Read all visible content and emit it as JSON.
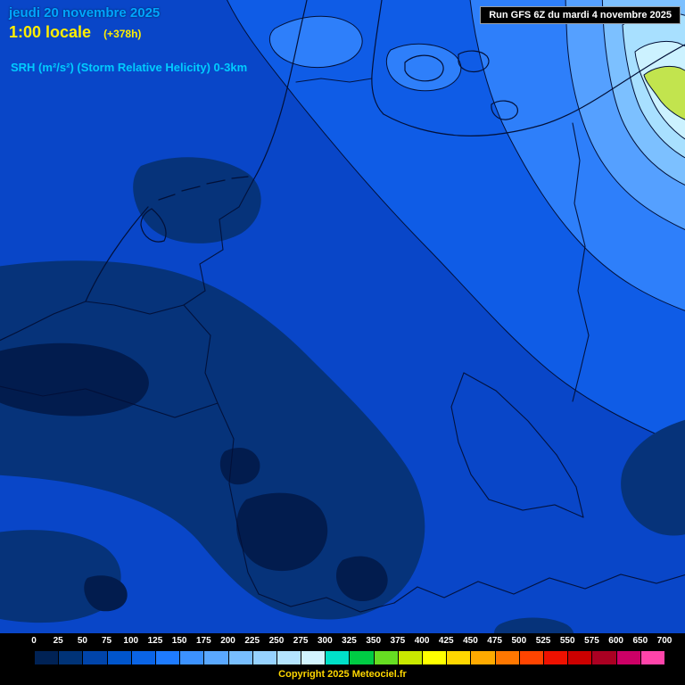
{
  "header": {
    "date_line": "jeudi 20 novembre 2025",
    "time_line": "1:00 locale",
    "forecast_offset": "(+378h)",
    "parameter": "SRH (m²/s²) (Storm Relative Helicity) 0-3km",
    "run_info": "Run GFS 6Z du mardi 4 novembre 2025"
  },
  "legend": {
    "tick_labels": [
      "0",
      "25",
      "50",
      "75",
      "100",
      "125",
      "150",
      "175",
      "200",
      "225",
      "250",
      "275",
      "300",
      "325",
      "350",
      "375",
      "400",
      "425",
      "450",
      "475",
      "500",
      "525",
      "550",
      "575",
      "600",
      "650",
      "700"
    ],
    "cell_colors": [
      "#002255",
      "#003377",
      "#0044aa",
      "#0055cc",
      "#0a64e6",
      "#1e7bff",
      "#3c92ff",
      "#5aa8ff",
      "#78beff",
      "#96d2ff",
      "#b4e4ff",
      "#d2f4ff",
      "#00e0c8",
      "#00cc44",
      "#66dd22",
      "#c8e800",
      "#ffff00",
      "#ffd700",
      "#ffaa00",
      "#ff7700",
      "#ff4400",
      "#ee1100",
      "#cc0000",
      "#aa0022",
      "#cc0066",
      "#ff44aa"
    ]
  },
  "footer": {
    "copyright": "Copyright 2025 Meteociel.fr"
  },
  "map": {
    "accent_colors": {
      "date_text": "#00a6ff",
      "time_text": "#ffee00",
      "parameter_text": "#00ccff",
      "copyright_text": "#ffd700",
      "run_text": "#ffffff"
    },
    "palette": {
      "base": "#0946c8",
      "band_125": "#0f5ce6",
      "band_150": "#2e7ffa",
      "band_175": "#55a0ff",
      "band_200": "#7cc0ff",
      "band_225": "#a8e0ff",
      "band_250": "#ccf2ff",
      "band_350": "#c2e44e",
      "dark_band": "#06337a",
      "dark_core": "#021c4e",
      "outline": "#021038"
    }
  }
}
